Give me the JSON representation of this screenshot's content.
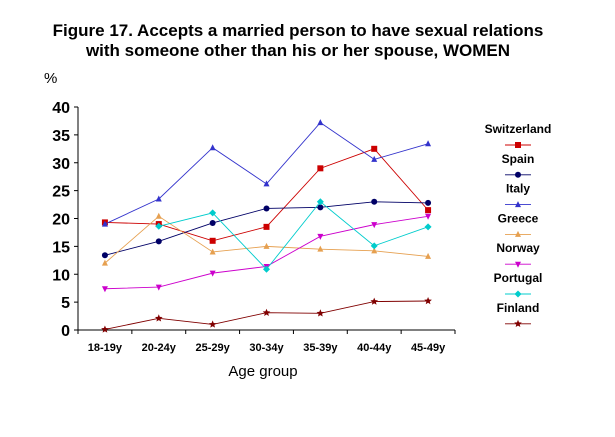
{
  "chart_data": {
    "type": "line",
    "title_line1": "Figure 17. Accepts a married person to have sexual relations",
    "title_line2": "with someone other than his or her spouse, WOMEN",
    "unit": "%",
    "xlabel": "Age group",
    "ylabel": "",
    "ylim": [
      0,
      40
    ],
    "yticks": [
      0,
      5,
      10,
      15,
      20,
      25,
      30,
      35,
      40
    ],
    "grid": false,
    "legend_position": "right",
    "categories": [
      "18-19y",
      "20-24y",
      "25-29y",
      "30-34y",
      "35-39y",
      "40-44y",
      "45-49y"
    ],
    "series": [
      {
        "name": "Switzerland",
        "color": "#cc0000",
        "marker": "square",
        "values": [
          19.3,
          19.0,
          16.0,
          18.5,
          29.0,
          32.5,
          21.5
        ]
      },
      {
        "name": "Spain",
        "color": "#000066",
        "marker": "circle",
        "values": [
          13.4,
          15.9,
          19.2,
          21.8,
          22.0,
          23.0,
          22.8
        ]
      },
      {
        "name": "Italy",
        "color": "#3333cc",
        "marker": "triangle",
        "values": [
          19.0,
          23.5,
          32.7,
          26.2,
          37.2,
          30.6,
          33.4
        ]
      },
      {
        "name": "Greece",
        "color": "#e6a050",
        "marker": "triangle",
        "values": [
          12.0,
          20.4,
          14.0,
          15.0,
          14.5,
          14.2,
          13.2
        ]
      },
      {
        "name": "Norway",
        "color": "#cc00cc",
        "marker": "tridown",
        "values": [
          7.4,
          7.7,
          10.2,
          11.4,
          16.8,
          18.9,
          20.4
        ]
      },
      {
        "name": "Portugal",
        "color": "#00cccc",
        "marker": "diamond",
        "values": [
          null,
          18.6,
          21.0,
          10.9,
          23.0,
          15.1,
          18.5
        ]
      },
      {
        "name": "Finland",
        "color": "#800000",
        "marker": "star",
        "values": [
          0.1,
          2.1,
          1.0,
          3.1,
          3.0,
          5.1,
          5.2
        ]
      }
    ]
  }
}
